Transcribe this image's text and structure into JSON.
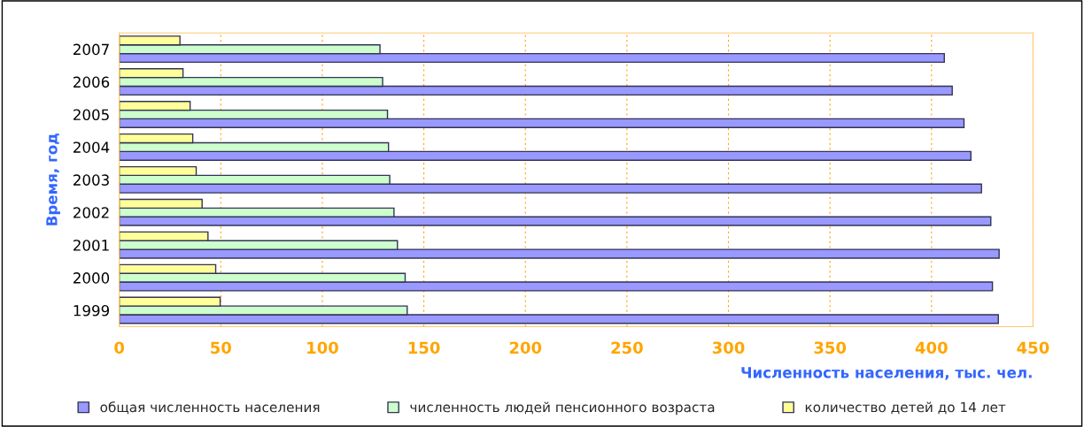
{
  "chart_data": {
    "type": "bar",
    "orientation": "horizontal",
    "categories": [
      "2007",
      "2006",
      "2005",
      "2004",
      "2003",
      "2002",
      "2001",
      "2000",
      "1999"
    ],
    "series": [
      {
        "name": "общая численность населения",
        "color": "#9999ff",
        "values": [
          406.3,
          410.2,
          416.0,
          419.4,
          424.6,
          429.2,
          433.3,
          430.0,
          432.9
        ]
      },
      {
        "name": "численность людей пенсионного возраста",
        "color": "#ccffcc",
        "values": [
          128.4,
          129.7,
          132.1,
          132.6,
          133.2,
          135.3,
          137.0,
          140.8,
          141.8
        ]
      },
      {
        "name": "количество детей до 14 лет",
        "color": "#ffff99",
        "values": [
          29.9,
          31.4,
          34.9,
          36.2,
          37.9,
          40.8,
          43.7,
          47.5,
          49.7
        ]
      }
    ],
    "xlabel": "Численность населения, тыс. чел.",
    "ylabel": "Время, год",
    "xlim": [
      0,
      450
    ],
    "xticks": [
      0,
      50,
      100,
      150,
      200,
      250,
      300,
      350,
      400,
      450
    ],
    "grid": "x",
    "legend": "bottom"
  }
}
